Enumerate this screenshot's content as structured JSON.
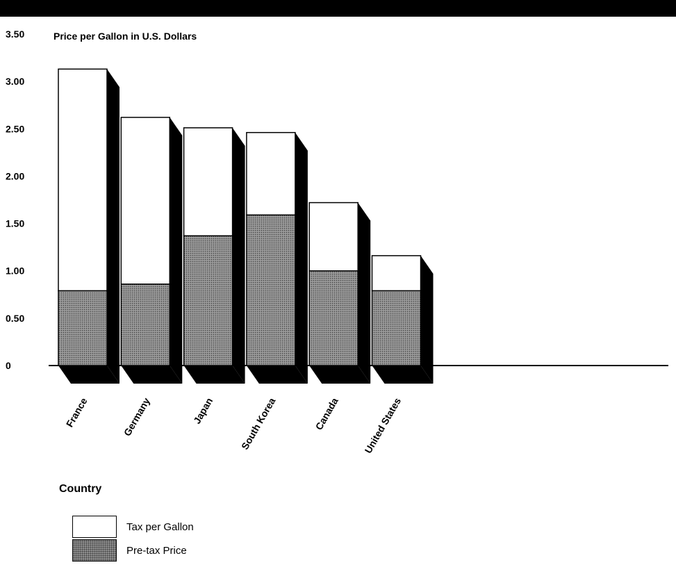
{
  "chart_data": {
    "type": "bar",
    "stacked": true,
    "title": "Price per Gallon in U.S. Dollars",
    "xlabel": "Country",
    "ylabel": "",
    "ylim": [
      0,
      3.5
    ],
    "yticks": [
      "0",
      "0.50",
      "1.00",
      "1.50",
      "2.00",
      "2.50",
      "3.00",
      "3.50"
    ],
    "categories": [
      "France",
      "Germany",
      "Japan",
      "South Korea",
      "Canada",
      "United States"
    ],
    "series": [
      {
        "name": "Pre-tax Price",
        "values": [
          0.79,
          0.86,
          1.37,
          1.59,
          1.0,
          0.79
        ],
        "color": "#8c8c8c"
      },
      {
        "name": "Tax per Gallon",
        "values": [
          2.34,
          1.76,
          1.14,
          0.87,
          0.72,
          0.37
        ],
        "color": "#ffffff"
      }
    ],
    "legend_position": "bottom-left",
    "grid": false
  }
}
